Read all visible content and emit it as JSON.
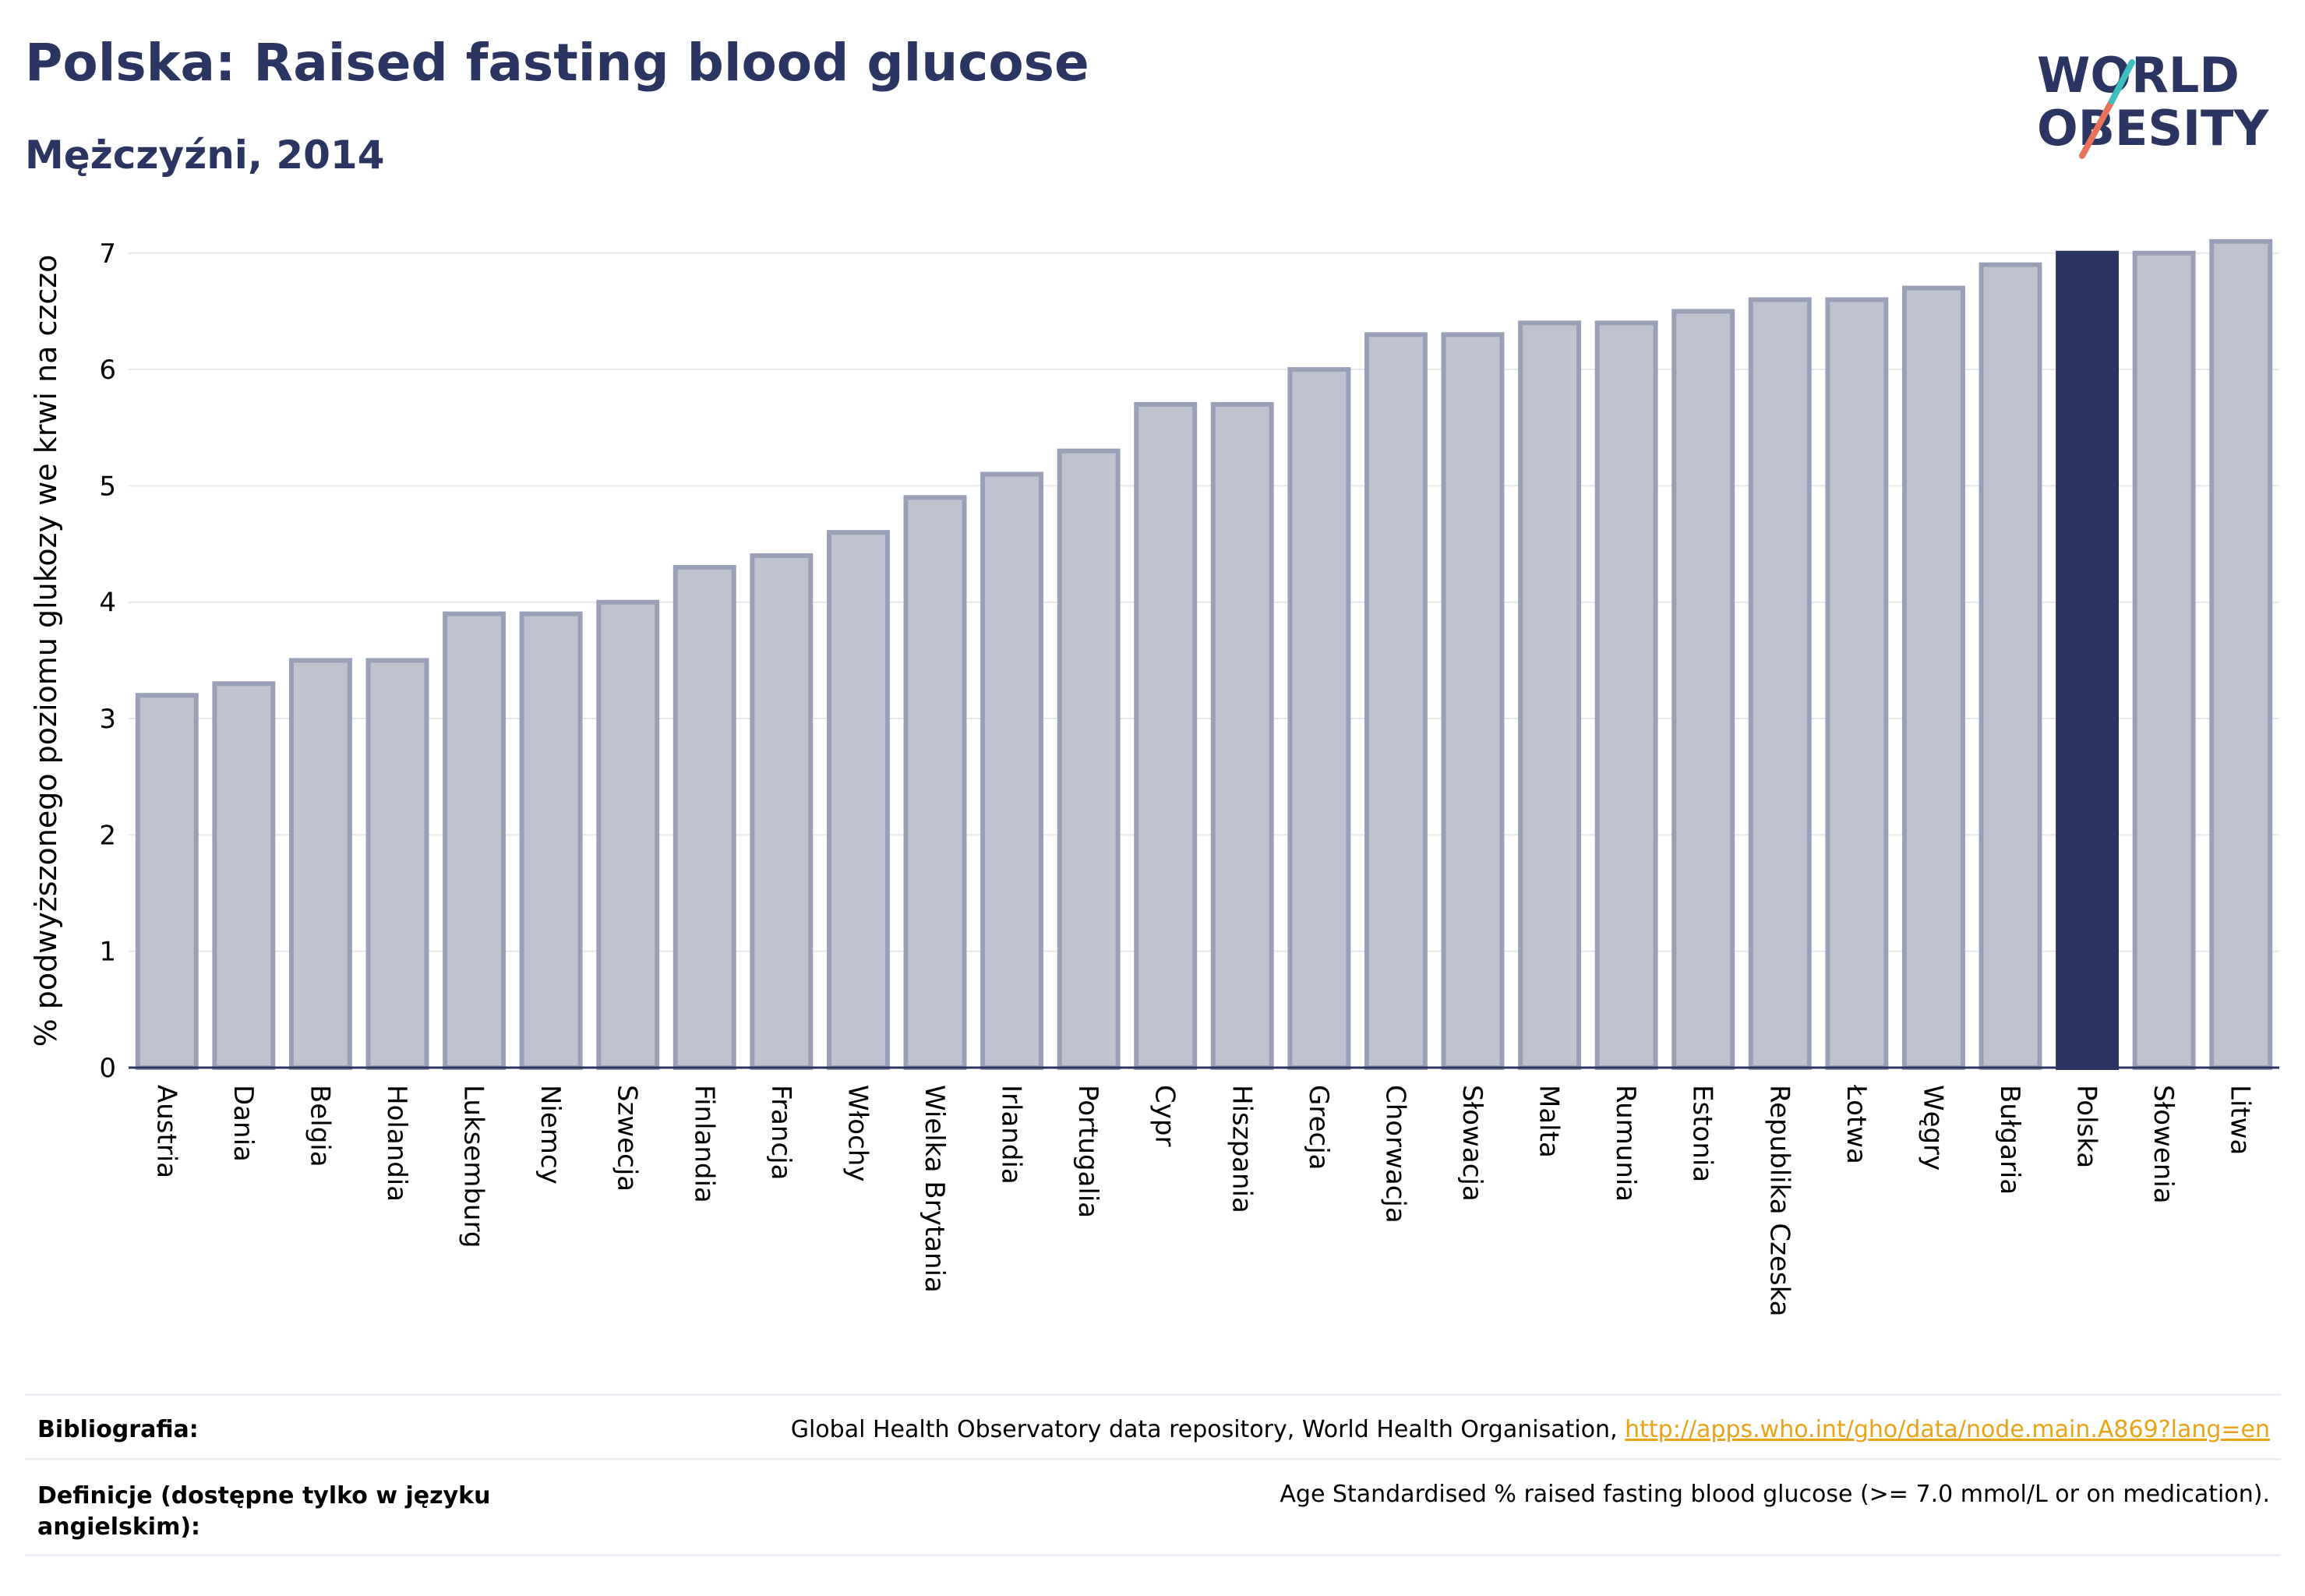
{
  "header": {
    "title": "Polska: Raised fasting blood glucose",
    "subtitle": "Mężczyźni, 2014"
  },
  "logo": {
    "line1": "WORLD",
    "line2": "OBESITY",
    "colors": {
      "text": "#2b3562",
      "slash_coral": "#e8735a",
      "slash_teal": "#3dbfbf"
    }
  },
  "chart_data": {
    "type": "bar",
    "title": "Polska: Raised fasting blood glucose",
    "subtitle": "Mężczyźni, 2014",
    "xlabel": "",
    "ylabel": "% podwyższonego poziomu glukozy we krwi na czczo",
    "ylim": [
      0,
      7.3
    ],
    "yticks": [
      0,
      1,
      2,
      3,
      4,
      5,
      6,
      7
    ],
    "grid": true,
    "highlight": "Polska",
    "colors": {
      "bar": "#bfc3d0",
      "bar_edge": "#9aa0b8",
      "highlight": "#2b3562",
      "grid": "#e6e6ee",
      "axis": "#2b3562"
    },
    "categories": [
      "Austria",
      "Dania",
      "Belgia",
      "Holandia",
      "Luksemburg",
      "Niemcy",
      "Szwecja",
      "Finlandia",
      "Francja",
      "Włochy",
      "Wielka Brytania",
      "Irlandia",
      "Portugalia",
      "Cypr",
      "Hiszpania",
      "Grecja",
      "Chorwacja",
      "Słowacja",
      "Malta",
      "Rumunia",
      "Estonia",
      "Republika Czeska",
      "Łotwa",
      "Węgry",
      "Bułgaria",
      "Polska",
      "Słowenia",
      "Litwa"
    ],
    "values": [
      3.2,
      3.3,
      3.5,
      3.5,
      3.9,
      3.9,
      4.0,
      4.3,
      4.4,
      4.6,
      4.9,
      5.1,
      5.3,
      5.7,
      5.7,
      6.0,
      6.3,
      6.3,
      6.4,
      6.4,
      6.5,
      6.6,
      6.6,
      6.7,
      6.9,
      7.0,
      7.0,
      7.1
    ]
  },
  "footer": {
    "bibliography_label": "Bibliografia:",
    "bibliography_text": "Global Health Observatory data repository, World Health Organisation, ",
    "bibliography_link": "http://apps.who.int/gho/data/node.main.A869?lang=en",
    "definitions_label": "Definicje (dostępne tylko w języku angielskim):",
    "definitions_text": "Age Standardised % raised fasting blood glucose (>= 7.0 mmol/L or on medication)."
  }
}
